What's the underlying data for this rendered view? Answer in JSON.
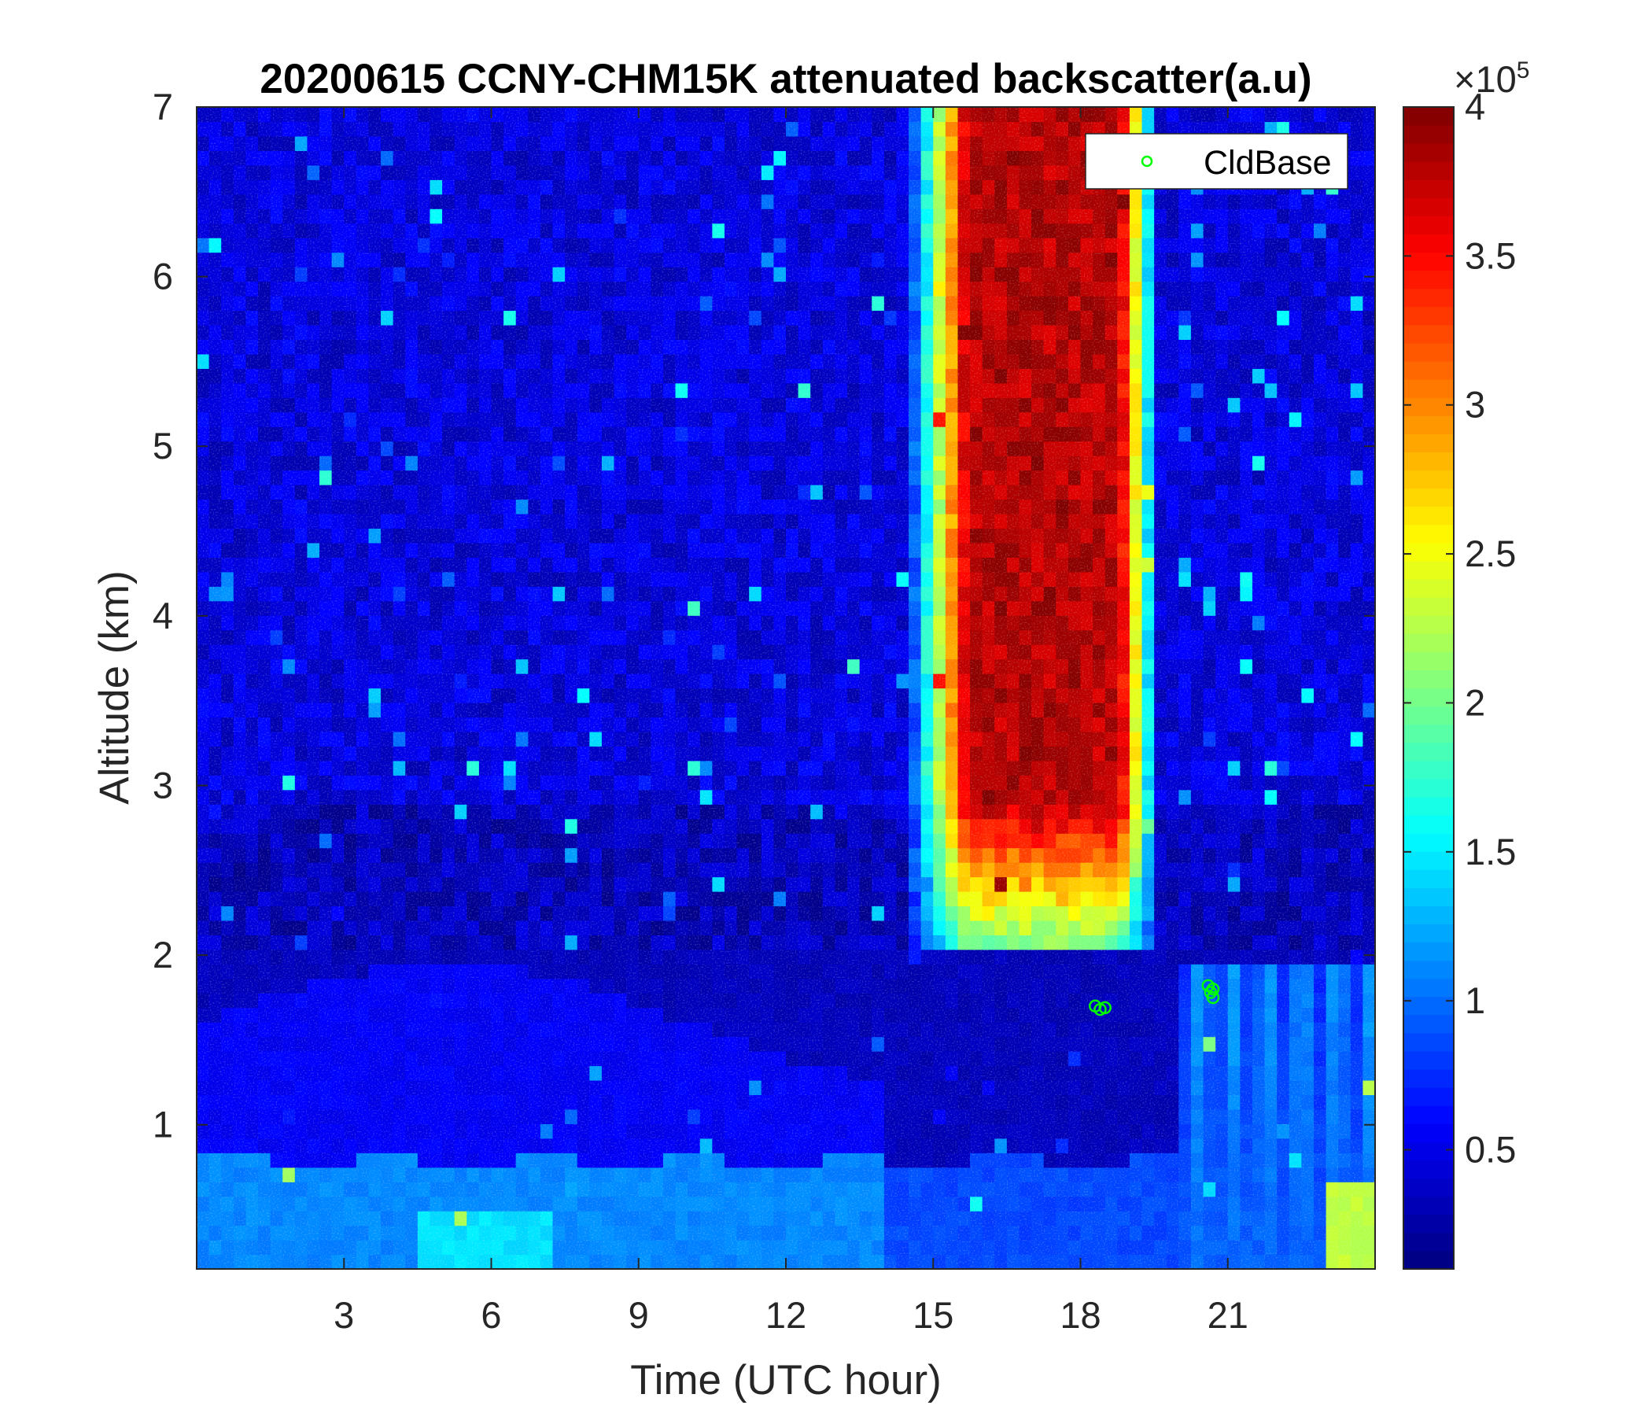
{
  "chart_data": {
    "type": "heatmap",
    "title": "20200615 CCNY-CHM15K attenuated backscatter(a.u)",
    "xlabel": "Time (UTC hour)",
    "ylabel": "Altitude (km)",
    "xlim": [
      0,
      24
    ],
    "ylim": [
      0.15,
      7
    ],
    "x_ticks": [
      3,
      6,
      9,
      12,
      15,
      18,
      21
    ],
    "y_ticks": [
      1,
      2,
      3,
      4,
      5,
      6,
      7
    ],
    "colorbar": {
      "colormap": "jet",
      "range": [
        0.1,
        4.0
      ],
      "ticks": [
        0.5,
        1,
        1.5,
        2,
        2.5,
        3,
        3.5,
        4
      ],
      "tick_labels": [
        "0.5",
        "1",
        "1.5",
        "2",
        "2.5",
        "3",
        "3.5",
        "4"
      ],
      "multiplier_base": "×10",
      "multiplier_exponent": "5"
    },
    "legend": {
      "position": "top-right",
      "entries": [
        "CldBase"
      ]
    },
    "series": [
      {
        "name": "CldBase",
        "marker": "circle",
        "color": "#00ff00",
        "points": [
          {
            "x": 18.3,
            "y": 1.7
          },
          {
            "x": 18.4,
            "y": 1.68
          },
          {
            "x": 18.5,
            "y": 1.69
          },
          {
            "x": 20.6,
            "y": 1.82
          },
          {
            "x": 20.65,
            "y": 1.78
          },
          {
            "x": 20.7,
            "y": 1.75
          },
          {
            "x": 20.7,
            "y": 1.8
          }
        ]
      }
    ],
    "field_description": [
      {
        "x": [
          0,
          24
        ],
        "y": [
          0.15,
          0.75
        ],
        "value": 1.1
      },
      {
        "x": [
          4.5,
          7
        ],
        "y": [
          0.15,
          0.45
        ],
        "value": 1.45
      },
      {
        "x": [
          23,
          24
        ],
        "y": [
          0.15,
          0.7
        ],
        "value": 2.3
      },
      {
        "x": [
          0,
          13
        ],
        "y": [
          0.75,
          1.8
        ],
        "value": 0.55
      },
      {
        "x": [
          0,
          13
        ],
        "y": [
          1.8,
          2.8
        ],
        "value": 0.35
      },
      {
        "x": [
          20,
          24
        ],
        "y": [
          0.2,
          1.95
        ],
        "value": 1.0
      },
      {
        "x": [
          15.5,
          19
        ],
        "y": [
          2.0,
          7
        ],
        "value": 3.9
      },
      {
        "x": [
          0,
          15
        ],
        "y": [
          2.8,
          7
        ],
        "value": 0.45
      }
    ]
  }
}
